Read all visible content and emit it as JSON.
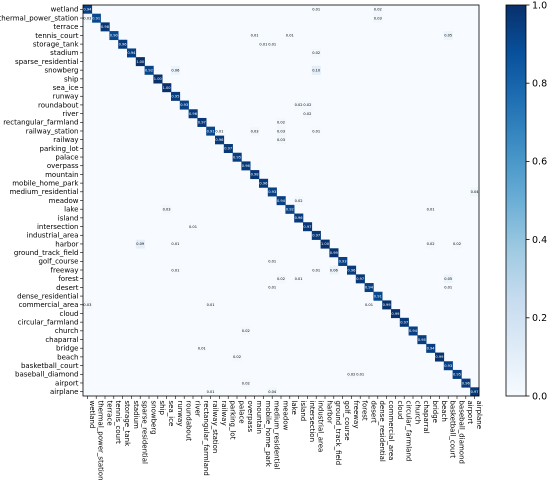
{
  "chart_data": {
    "type": "heatmap",
    "title": "",
    "xlabel": "",
    "ylabel": "",
    "labels": [
      "wetland",
      "thermal_power_station",
      "terrace",
      "tennis_court",
      "storage_tank",
      "stadium",
      "sparse_residential",
      "snowberg",
      "ship",
      "sea_ice",
      "runway",
      "roundabout",
      "river",
      "rectangular_farmland",
      "railway_station",
      "railway",
      "parking_lot",
      "palace",
      "overpass",
      "mountain",
      "mobile_home_park",
      "medium_residential",
      "meadow",
      "lake",
      "island",
      "intersection",
      "industrial_area",
      "harbor",
      "ground_track_field",
      "golf_course",
      "freeway",
      "forest",
      "desert",
      "dense_residential",
      "commercial_area",
      "cloud",
      "circular_farmland",
      "church",
      "chaparral",
      "bridge",
      "beach",
      "basketball_court",
      "baseball_diamond",
      "airport",
      "airplane"
    ],
    "diagonal": [
      0.94,
      0.91,
      0.98,
      0.9,
      0.96,
      0.94,
      1.0,
      0.92,
      1.0,
      1.0,
      0.95,
      0.93,
      0.96,
      0.97,
      0.91,
      0.96,
      0.97,
      0.95,
      0.96,
      0.98,
      0.96,
      0.93,
      0.94,
      0.92,
      0.96,
      0.97,
      0.97,
      1.0,
      0.99,
      0.93,
      0.96,
      0.97,
      0.94,
      0.91,
      0.99,
      0.99,
      0.97,
      0.94,
      0.95,
      0.94,
      0.99,
      0.93,
      0.95,
      0.96,
      0.97
    ],
    "diagonal_labels": [
      "0.94",
      "0.91",
      "0.98",
      "0.90",
      "0.96",
      "0.94",
      "1.00",
      "0.92",
      "1.00",
      "1.00",
      "0.95",
      "0.93",
      "0.96",
      "0.97",
      "0.91",
      "0.96",
      "0.97",
      "0.95",
      "0.96",
      "0.98",
      "0.96",
      "0.93",
      "0.94",
      "0.92",
      "0.96",
      "0.97",
      "0.97",
      "1.00",
      "0.99",
      "0.93",
      "0.96",
      "0.97",
      "0.94",
      "0.91",
      "0.99",
      "0.99",
      "0.97",
      "0.94",
      "0.95",
      "0.94",
      "0.99",
      "0.93",
      "0.95",
      "0.96",
      "0.97"
    ],
    "offdiagonal": [
      {
        "row": 0,
        "col": 26,
        "value": 0.01,
        "label": "0.01"
      },
      {
        "row": 0,
        "col": 33,
        "value": 0.02,
        "label": "0.02"
      },
      {
        "row": 1,
        "col": 0,
        "value": 0.03,
        "label": "0.03"
      },
      {
        "row": 1,
        "col": 33,
        "value": 0.03,
        "label": "0.03"
      },
      {
        "row": 3,
        "col": 19,
        "value": 0.01,
        "label": "0.01"
      },
      {
        "row": 3,
        "col": 23,
        "value": 0.01,
        "label": "0.01"
      },
      {
        "row": 3,
        "col": 41,
        "value": 0.05,
        "label": "0.05"
      },
      {
        "row": 4,
        "col": 20,
        "value": 0.01,
        "label": "0.01"
      },
      {
        "row": 4,
        "col": 21,
        "value": 0.01,
        "label": "0.01"
      },
      {
        "row": 5,
        "col": 26,
        "value": 0.02,
        "label": "0.02"
      },
      {
        "row": 7,
        "col": 10,
        "value": 0.06,
        "label": "0.06"
      },
      {
        "row": 7,
        "col": 26,
        "value": 0.1,
        "label": "0.10"
      },
      {
        "row": 11,
        "col": 24,
        "value": 0.02,
        "label": "0.02"
      },
      {
        "row": 11,
        "col": 25,
        "value": 0.02,
        "label": "0.02"
      },
      {
        "row": 12,
        "col": 25,
        "value": 0.02,
        "label": "0.02"
      },
      {
        "row": 13,
        "col": 22,
        "value": 0.02,
        "label": "0.02"
      },
      {
        "row": 14,
        "col": 15,
        "value": 0.01,
        "label": "0.01"
      },
      {
        "row": 14,
        "col": 19,
        "value": 0.03,
        "label": "0.03"
      },
      {
        "row": 14,
        "col": 22,
        "value": 0.03,
        "label": "0.03"
      },
      {
        "row": 14,
        "col": 26,
        "value": 0.01,
        "label": "0.01"
      },
      {
        "row": 15,
        "col": 22,
        "value": 0.03,
        "label": "0.03"
      },
      {
        "row": 21,
        "col": 44,
        "value": 0.04,
        "label": "0.04"
      },
      {
        "row": 22,
        "col": 24,
        "value": 0.02,
        "label": "0.02"
      },
      {
        "row": 23,
        "col": 9,
        "value": 0.03,
        "label": "0.03"
      },
      {
        "row": 23,
        "col": 39,
        "value": 0.01,
        "label": "0.01"
      },
      {
        "row": 25,
        "col": 12,
        "value": 0.01,
        "label": "0.01"
      },
      {
        "row": 27,
        "col": 6,
        "value": 0.09,
        "label": "0.09"
      },
      {
        "row": 27,
        "col": 10,
        "value": 0.01,
        "label": "0.01"
      },
      {
        "row": 27,
        "col": 39,
        "value": 0.02,
        "label": "0.02"
      },
      {
        "row": 27,
        "col": 42,
        "value": 0.02,
        "label": "0.02"
      },
      {
        "row": 29,
        "col": 21,
        "value": 0.01,
        "label": "0.01"
      },
      {
        "row": 30,
        "col": 10,
        "value": 0.01,
        "label": "0.01"
      },
      {
        "row": 30,
        "col": 26,
        "value": 0.01,
        "label": "0.01"
      },
      {
        "row": 30,
        "col": 28,
        "value": 0.06,
        "label": "0.06"
      },
      {
        "row": 31,
        "col": 22,
        "value": 0.02,
        "label": "0.02"
      },
      {
        "row": 31,
        "col": 24,
        "value": 0.01,
        "label": "0.01"
      },
      {
        "row": 31,
        "col": 41,
        "value": 0.05,
        "label": "0.05"
      },
      {
        "row": 32,
        "col": 21,
        "value": 0.01,
        "label": "0.01"
      },
      {
        "row": 32,
        "col": 41,
        "value": 0.01,
        "label": "0.01"
      },
      {
        "row": 34,
        "col": 0,
        "value": 0.03,
        "label": "0.03"
      },
      {
        "row": 34,
        "col": 14,
        "value": 0.01,
        "label": "0.01"
      },
      {
        "row": 34,
        "col": 32,
        "value": 0.01,
        "label": "0.01"
      },
      {
        "row": 37,
        "col": 18,
        "value": 0.02,
        "label": "0.02"
      },
      {
        "row": 39,
        "col": 13,
        "value": 0.01,
        "label": "0.01"
      },
      {
        "row": 40,
        "col": 17,
        "value": 0.02,
        "label": "0.02"
      },
      {
        "row": 42,
        "col": 30,
        "value": 0.02,
        "label": "0.02"
      },
      {
        "row": 42,
        "col": 31,
        "value": 0.01,
        "label": "0.01"
      },
      {
        "row": 43,
        "col": 18,
        "value": 0.02,
        "label": "0.02"
      },
      {
        "row": 44,
        "col": 14,
        "value": 0.01,
        "label": "0.01"
      },
      {
        "row": 44,
        "col": 21,
        "value": 0.04,
        "label": "0.04"
      }
    ],
    "colorbar": {
      "range": [
        0.0,
        1.0
      ],
      "ticks": [
        "0.0",
        "0.2",
        "0.4",
        "0.6",
        "0.8",
        "1.0"
      ],
      "tick_values": [
        0.0,
        0.2,
        0.4,
        0.6,
        0.8,
        1.0
      ],
      "colormap": "Blues",
      "color_low": "#f7fbff",
      "color_high": "#08306b"
    },
    "grid": false,
    "legend": "colorbar-right"
  }
}
